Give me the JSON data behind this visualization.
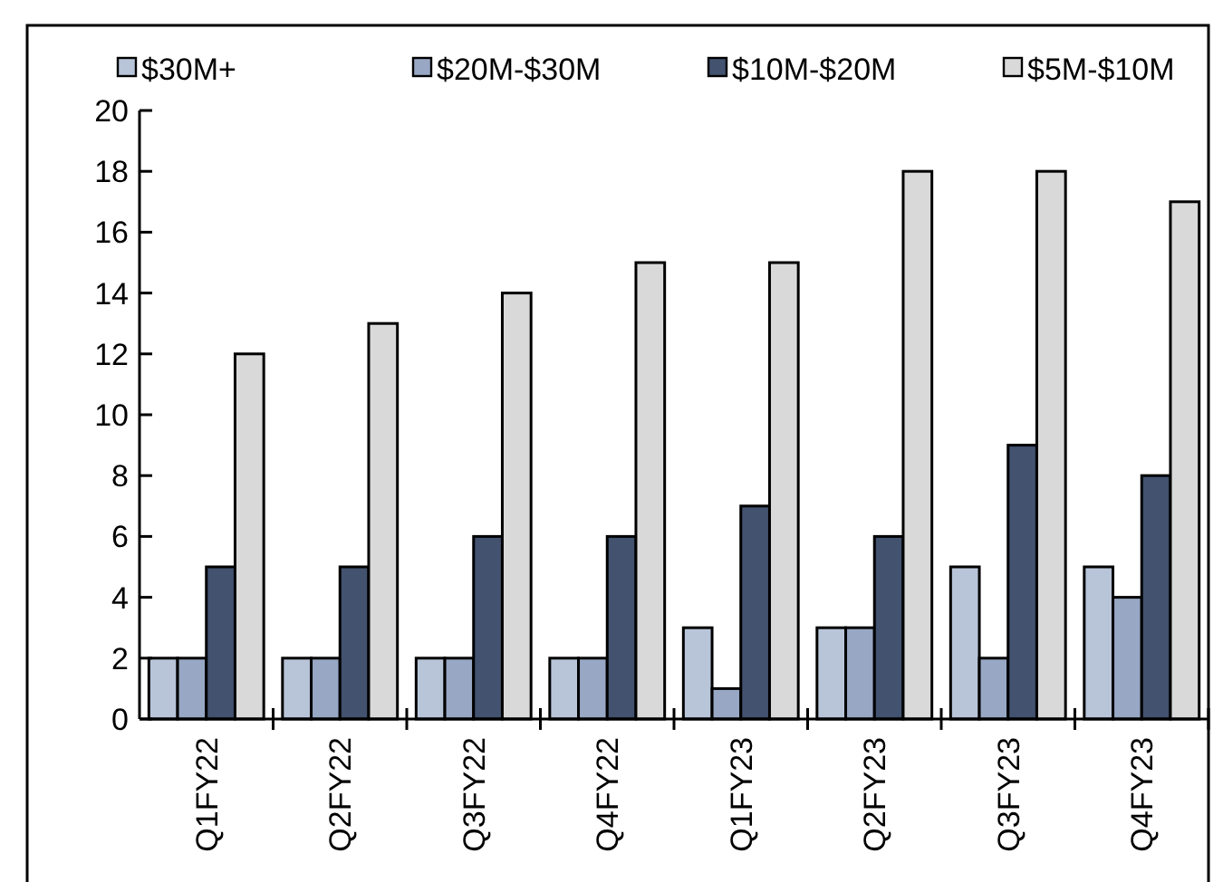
{
  "chart_data": {
    "type": "bar",
    "categories": [
      "Q1FY22",
      "Q2FY22",
      "Q3FY22",
      "Q4FY22",
      "Q1FY23",
      "Q2FY23",
      "Q3FY23",
      "Q4FY23"
    ],
    "series": [
      {
        "name": "$30M+",
        "color": "#b8c4d8",
        "values": [
          2,
          2,
          2,
          2,
          3,
          3,
          5,
          5
        ]
      },
      {
        "name": "$20M-$30M",
        "color": "#97a7c4",
        "values": [
          2,
          2,
          2,
          2,
          1,
          3,
          2,
          4
        ]
      },
      {
        "name": "$10M-$20M",
        "color": "#42526f",
        "values": [
          5,
          5,
          6,
          6,
          7,
          6,
          9,
          8
        ]
      },
      {
        "name": "$5M-$10M",
        "color": "#d9d9d9",
        "values": [
          12,
          13,
          14,
          15,
          15,
          18,
          18,
          17
        ]
      }
    ],
    "ylim": [
      0,
      20
    ],
    "yticks": [
      0,
      2,
      4,
      6,
      8,
      10,
      12,
      14,
      16,
      18,
      20
    ],
    "grid": false,
    "legend": "top"
  }
}
